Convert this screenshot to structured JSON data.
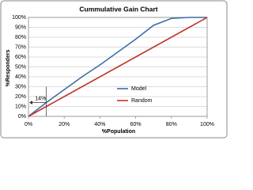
{
  "chart_data": {
    "type": "line",
    "title": "Cummulative Gain Chart",
    "x_label": "%Population",
    "y_label": "%Responders",
    "x": [
      0,
      10,
      20,
      30,
      40,
      50,
      60,
      70,
      80,
      90,
      100
    ],
    "series": [
      {
        "name": "Model",
        "color": "#3a6ea5",
        "values": [
          0,
          14,
          27,
          40,
          52,
          65,
          78,
          92,
          99,
          100,
          100
        ]
      },
      {
        "name": "Random",
        "color": "#c0392b",
        "values": [
          0,
          10,
          20,
          30,
          40,
          50,
          60,
          70,
          80,
          90,
          100
        ]
      }
    ],
    "xlim": [
      0,
      100
    ],
    "xticks": [
      {
        "value": 0,
        "label": "0%"
      },
      {
        "value": 20,
        "label": "20%"
      },
      {
        "value": 40,
        "label": "40%"
      },
      {
        "value": 60,
        "label": "60%"
      },
      {
        "value": 80,
        "label": "80%"
      },
      {
        "value": 100,
        "label": "100%"
      }
    ],
    "ylim": [
      0,
      100
    ],
    "yticks": [
      {
        "value": 0,
        "label": "0%"
      },
      {
        "value": 10,
        "label": "10%"
      },
      {
        "value": 20,
        "label": "20%"
      },
      {
        "value": 30,
        "label": "30%"
      },
      {
        "value": 40,
        "label": "40%"
      },
      {
        "value": 50,
        "label": "50%"
      },
      {
        "value": 60,
        "label": "60%"
      },
      {
        "value": 70,
        "label": "70%"
      },
      {
        "value": 80,
        "label": "80%"
      },
      {
        "value": 90,
        "label": "90%"
      },
      {
        "value": 100,
        "label": "100%"
      }
    ],
    "grid": true,
    "annotation": {
      "text": "14%",
      "x": 10,
      "y": 14
    }
  }
}
